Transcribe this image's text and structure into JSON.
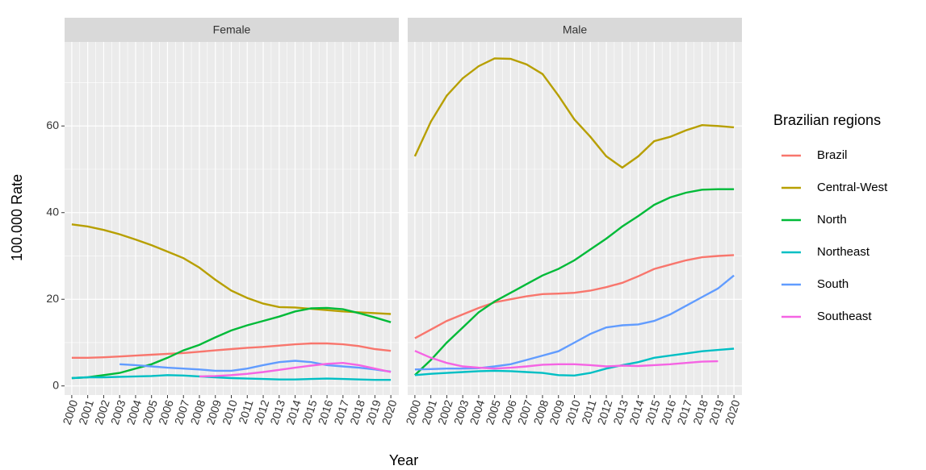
{
  "chart_data": [
    {
      "type": "line",
      "title": "Female",
      "x_label": "Year",
      "y_label": "100.000 Rate",
      "legend_title": "Brazilian regions",
      "legend": "right",
      "grid": true,
      "x": [
        2000,
        2001,
        2002,
        2003,
        2004,
        2005,
        2006,
        2007,
        2008,
        2009,
        2010,
        2011,
        2012,
        2013,
        2014,
        2015,
        2016,
        2017,
        2018,
        2019,
        2020
      ],
      "xlim": [
        1999.55,
        2020.5
      ],
      "xticks": [
        2000,
        2001,
        2002,
        2003,
        2004,
        2005,
        2006,
        2007,
        2008,
        2009,
        2010,
        2011,
        2012,
        2013,
        2014,
        2015,
        2016,
        2017,
        2018,
        2019,
        2020
      ],
      "ylim": [
        -2.1,
        79.4
      ],
      "yticks": [
        0,
        20,
        40,
        60
      ],
      "series": [
        {
          "name": "Brazil",
          "color": "#F8766D",
          "values": [
            6.5,
            6.5,
            6.6,
            6.8,
            7,
            7.2,
            7.4,
            7.6,
            7.9,
            8.2,
            8.5,
            8.8,
            9,
            9.3,
            9.6,
            9.8,
            9.8,
            9.6,
            9.2,
            8.5,
            8.1
          ]
        },
        {
          "name": "Central-West",
          "color": "#B79F00",
          "values": [
            37.3,
            36.8,
            36,
            35,
            33.8,
            32.5,
            31,
            29.5,
            27.3,
            24.5,
            22,
            20.3,
            19,
            18.2,
            18.1,
            17.8,
            17.5,
            17.2,
            17,
            16.8,
            16.6
          ]
        },
        {
          "name": "North",
          "color": "#00BA38",
          "values": [
            1.8,
            2,
            2.5,
            3,
            4,
            5,
            6.5,
            8.2,
            9.5,
            11.2,
            12.8,
            14,
            15,
            16,
            17.2,
            17.9,
            18,
            17.7,
            16.8,
            15.8,
            14.7
          ]
        },
        {
          "name": "Northeast",
          "color": "#00BFC4",
          "values": [
            1.8,
            2,
            2,
            2.1,
            2.2,
            2.3,
            2.5,
            2.4,
            2.2,
            2,
            1.8,
            1.7,
            1.6,
            1.5,
            1.5,
            1.6,
            1.7,
            1.6,
            1.5,
            1.4,
            1.4
          ]
        },
        {
          "name": "South",
          "color": "#619CFF",
          "values": [
            null,
            null,
            null,
            5,
            4.8,
            4.5,
            4.2,
            4,
            3.8,
            3.5,
            3.5,
            4,
            4.8,
            5.5,
            5.8,
            5.5,
            4.8,
            4.5,
            4.2,
            3.8,
            3.3
          ]
        },
        {
          "name": "Southeast",
          "color": "#F564E3",
          "values": [
            null,
            null,
            null,
            null,
            null,
            null,
            null,
            null,
            2.2,
            2.3,
            2.5,
            2.8,
            3.2,
            3.7,
            4.2,
            4.7,
            5.1,
            5.3,
            4.8,
            4,
            3.2
          ]
        }
      ]
    },
    {
      "type": "line",
      "title": "Male",
      "grid": true,
      "x": [
        2000,
        2001,
        2002,
        2003,
        2004,
        2005,
        2006,
        2007,
        2008,
        2009,
        2010,
        2011,
        2012,
        2013,
        2014,
        2015,
        2016,
        2017,
        2018,
        2019,
        2020
      ],
      "xlim": [
        1999.55,
        2020.5
      ],
      "xticks": [
        2000,
        2001,
        2002,
        2003,
        2004,
        2005,
        2006,
        2007,
        2008,
        2009,
        2010,
        2011,
        2012,
        2013,
        2014,
        2015,
        2016,
        2017,
        2018,
        2019,
        2020
      ],
      "ylim": [
        -2.1,
        79.4
      ],
      "series": [
        {
          "name": "Brazil",
          "color": "#F8766D",
          "values": [
            11,
            13,
            15,
            16.5,
            18,
            19.3,
            20,
            20.7,
            21.2,
            21.3,
            21.5,
            22,
            22.8,
            23.8,
            25.3,
            27,
            28,
            29,
            29.7,
            30,
            30.2
          ]
        },
        {
          "name": "Central-West",
          "color": "#B79F00",
          "values": [
            53,
            61,
            67,
            71,
            73.8,
            75.6,
            75.5,
            74.2,
            72,
            67,
            61.5,
            57.5,
            53,
            50.4,
            53,
            56.5,
            57.5,
            59,
            60.2,
            60,
            59.7
          ]
        },
        {
          "name": "North",
          "color": "#00BA38",
          "values": [
            2.5,
            6,
            10,
            13.5,
            17,
            19.5,
            21.5,
            23.5,
            25.5,
            27,
            29,
            31.5,
            34,
            36.8,
            39.2,
            41.8,
            43.5,
            44.6,
            45.3,
            45.4,
            45.4
          ]
        },
        {
          "name": "Northeast",
          "color": "#00BFC4",
          "values": [
            2.5,
            2.8,
            3,
            3.2,
            3.4,
            3.5,
            3.4,
            3.2,
            3,
            2.5,
            2.4,
            3,
            4,
            4.8,
            5.5,
            6.5,
            7,
            7.5,
            8,
            8.3,
            8.6
          ]
        },
        {
          "name": "South",
          "color": "#619CFF",
          "values": [
            3.8,
            3.9,
            4,
            4,
            4.1,
            4.5,
            5,
            6,
            7,
            8,
            10,
            12,
            13.5,
            14,
            14.2,
            15,
            16.5,
            18.5,
            20.5,
            22.5,
            25.5
          ]
        },
        {
          "name": "Southeast",
          "color": "#F564E3",
          "values": [
            8.1,
            6.5,
            5.3,
            4.5,
            4.2,
            4,
            4.2,
            4.5,
            4.9,
            5,
            5,
            4.8,
            4.5,
            4.7,
            4.6,
            4.8,
            5,
            5.3,
            5.6,
            5.7,
            null
          ]
        }
      ]
    }
  ]
}
